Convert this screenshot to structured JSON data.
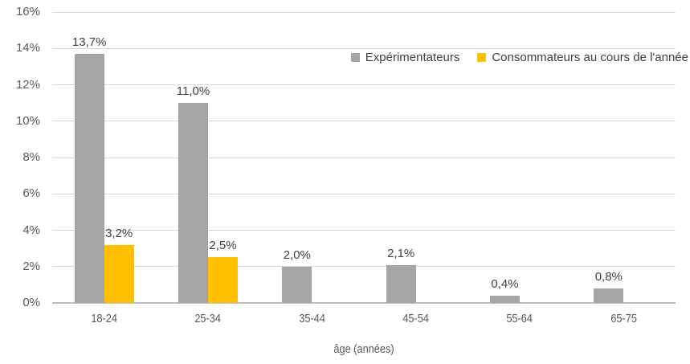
{
  "chart_data": {
    "type": "bar",
    "title": "",
    "categories": [
      "18-24",
      "25-34",
      "35-44",
      "45-54",
      "55-64",
      "65-75"
    ],
    "series": [
      {
        "name": "Expérimentateurs",
        "color": "#a5a5a5",
        "values": [
          13.7,
          11.0,
          2.0,
          2.1,
          0.4,
          0.8
        ],
        "labels": [
          "13,7%",
          "11,0%",
          "2,0%",
          "2,1%",
          "0,4%",
          "0,8%"
        ]
      },
      {
        "name": "Consommateurs au cours de l'année",
        "color": "#ffc000",
        "values": [
          3.2,
          2.5,
          null,
          null,
          null,
          null
        ],
        "labels": [
          "3,2%",
          "2,5%",
          "",
          "",
          "",
          ""
        ]
      }
    ],
    "xlabel": "âge (années)",
    "ylabel": "",
    "ylim": [
      0,
      16
    ],
    "ytick_step": 2,
    "ytick_labels": [
      "0%",
      "2%",
      "4%",
      "6%",
      "8%",
      "10%",
      "12%",
      "14%",
      "16%"
    ],
    "grid": true,
    "legend_position": "top-right-inside"
  },
  "colors": {
    "gridline": "#d9d9d9",
    "axis_line": "#bfbfbf",
    "tick_text": "#595959",
    "data_label_text": "#404040",
    "background": "#ffffff"
  }
}
